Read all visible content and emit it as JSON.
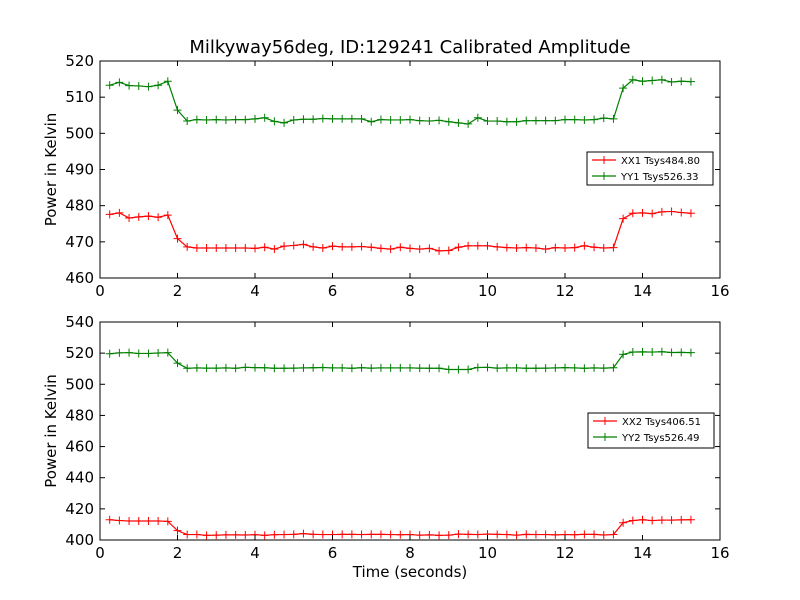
{
  "title": "Milkyway56deg, ID:129241 Calibrated Amplitude",
  "xlabel": "Time (seconds)",
  "chart_data": [
    {
      "type": "line",
      "ylabel": "Power in Kelvin",
      "xlim": [
        0,
        16
      ],
      "ylim": [
        460,
        520
      ],
      "xticks": [
        0,
        2,
        4,
        6,
        8,
        10,
        12,
        14,
        16
      ],
      "yticks": [
        460,
        470,
        480,
        490,
        500,
        510,
        520
      ],
      "legend_position": "right",
      "x": [
        0.25,
        0.5,
        0.75,
        1.0,
        1.25,
        1.5,
        1.75,
        2.0,
        2.25,
        2.5,
        2.75,
        3.0,
        3.25,
        3.5,
        3.75,
        4.0,
        4.25,
        4.5,
        4.75,
        5.0,
        5.25,
        5.5,
        5.75,
        6.0,
        6.25,
        6.5,
        6.75,
        7.0,
        7.25,
        7.5,
        7.75,
        8.0,
        8.25,
        8.5,
        8.75,
        9.0,
        9.25,
        9.5,
        9.75,
        10.0,
        10.25,
        10.5,
        10.75,
        11.0,
        11.25,
        11.5,
        11.75,
        12.0,
        12.25,
        12.5,
        12.75,
        13.0,
        13.25,
        13.5,
        13.75,
        14.0,
        14.25,
        14.5,
        14.75,
        15.0,
        15.25
      ],
      "series": [
        {
          "name": "XX1 Tsys484.80",
          "color": "#ff0000",
          "values": [
            477.6,
            478.0,
            476.6,
            476.9,
            477.1,
            476.8,
            477.4,
            470.9,
            468.6,
            468.3,
            468.3,
            468.3,
            468.3,
            468.3,
            468.3,
            468.2,
            468.5,
            468.0,
            468.8,
            469.0,
            469.3,
            468.6,
            468.3,
            468.8,
            468.6,
            468.6,
            468.7,
            468.5,
            468.2,
            468.0,
            468.5,
            468.2,
            468.0,
            468.2,
            467.5,
            467.6,
            468.5,
            468.9,
            468.9,
            468.9,
            468.6,
            468.4,
            468.3,
            468.4,
            468.3,
            468.0,
            468.4,
            468.3,
            468.4,
            468.9,
            468.5,
            468.3,
            468.4,
            476.4,
            477.9,
            478.0,
            477.8,
            478.3,
            478.4,
            478.1,
            477.9
          ]
        },
        {
          "name": "YY1 Tsys526.33",
          "color": "#008000",
          "values": [
            513.3,
            514.1,
            513.2,
            513.1,
            512.9,
            513.3,
            514.4,
            506.4,
            503.4,
            503.8,
            503.7,
            503.8,
            503.7,
            503.8,
            503.8,
            504.0,
            504.3,
            503.3,
            502.9,
            503.7,
            503.9,
            503.9,
            504.1,
            504.0,
            504.0,
            504.0,
            504.0,
            503.2,
            503.8,
            503.7,
            503.7,
            503.8,
            503.5,
            503.4,
            503.6,
            503.2,
            502.9,
            502.6,
            504.3,
            503.4,
            503.4,
            503.2,
            503.2,
            503.5,
            503.5,
            503.5,
            503.5,
            503.8,
            503.8,
            503.7,
            503.8,
            504.2,
            504.0,
            512.5,
            514.8,
            514.4,
            514.6,
            514.8,
            514.2,
            514.4,
            514.3
          ]
        }
      ]
    },
    {
      "type": "line",
      "ylabel": "Power in Kelvin",
      "xlim": [
        0,
        16
      ],
      "ylim": [
        400,
        540
      ],
      "xticks": [
        0,
        2,
        4,
        6,
        8,
        10,
        12,
        14,
        16
      ],
      "yticks": [
        400,
        420,
        440,
        460,
        480,
        500,
        520,
        540
      ],
      "legend_position": "right",
      "x": [
        0.25,
        0.5,
        0.75,
        1.0,
        1.25,
        1.5,
        1.75,
        2.0,
        2.25,
        2.5,
        2.75,
        3.0,
        3.25,
        3.5,
        3.75,
        4.0,
        4.25,
        4.5,
        4.75,
        5.0,
        5.25,
        5.5,
        5.75,
        6.0,
        6.25,
        6.5,
        6.75,
        7.0,
        7.25,
        7.5,
        7.75,
        8.0,
        8.25,
        8.5,
        8.75,
        9.0,
        9.25,
        9.5,
        9.75,
        10.0,
        10.25,
        10.5,
        10.75,
        11.0,
        11.25,
        11.5,
        11.75,
        12.0,
        12.25,
        12.5,
        12.75,
        13.0,
        13.25,
        13.5,
        13.75,
        14.0,
        14.25,
        14.5,
        14.75,
        15.0,
        15.25
      ],
      "series": [
        {
          "name": "XX2 Tsys406.51",
          "color": "#ff0000",
          "values": [
            413.0,
            412.5,
            412.2,
            412.2,
            412.2,
            412.2,
            412.0,
            406.0,
            403.5,
            403.5,
            403.0,
            403.1,
            403.3,
            403.3,
            403.2,
            403.4,
            403.0,
            403.4,
            403.5,
            403.6,
            404.1,
            403.6,
            403.5,
            403.5,
            403.6,
            403.6,
            403.5,
            403.6,
            403.6,
            403.5,
            403.4,
            403.5,
            403.1,
            403.3,
            403.0,
            403.1,
            403.8,
            403.6,
            403.5,
            403.8,
            403.6,
            403.5,
            403.1,
            403.6,
            403.5,
            403.5,
            403.3,
            403.5,
            403.4,
            403.6,
            403.6,
            403.2,
            403.5,
            411.1,
            412.5,
            413.0,
            412.5,
            412.8,
            412.8,
            412.9,
            413.0
          ]
        },
        {
          "name": "YY2 Tsys526.49",
          "color": "#008000",
          "values": [
            519.6,
            520.2,
            520.3,
            519.8,
            519.8,
            520.1,
            520.3,
            513.6,
            510.3,
            510.5,
            510.4,
            510.4,
            510.5,
            510.3,
            510.9,
            510.7,
            510.6,
            510.3,
            510.3,
            510.4,
            510.5,
            510.6,
            510.8,
            510.5,
            510.5,
            510.3,
            510.6,
            510.4,
            510.5,
            510.5,
            510.5,
            510.5,
            510.4,
            510.3,
            510.3,
            509.5,
            509.5,
            509.5,
            510.8,
            510.9,
            510.4,
            510.5,
            510.5,
            510.3,
            510.3,
            510.4,
            510.5,
            510.7,
            510.5,
            510.3,
            510.5,
            510.4,
            510.6,
            519.2,
            520.7,
            520.8,
            520.7,
            520.9,
            520.4,
            520.5,
            520.3
          ]
        }
      ]
    }
  ]
}
